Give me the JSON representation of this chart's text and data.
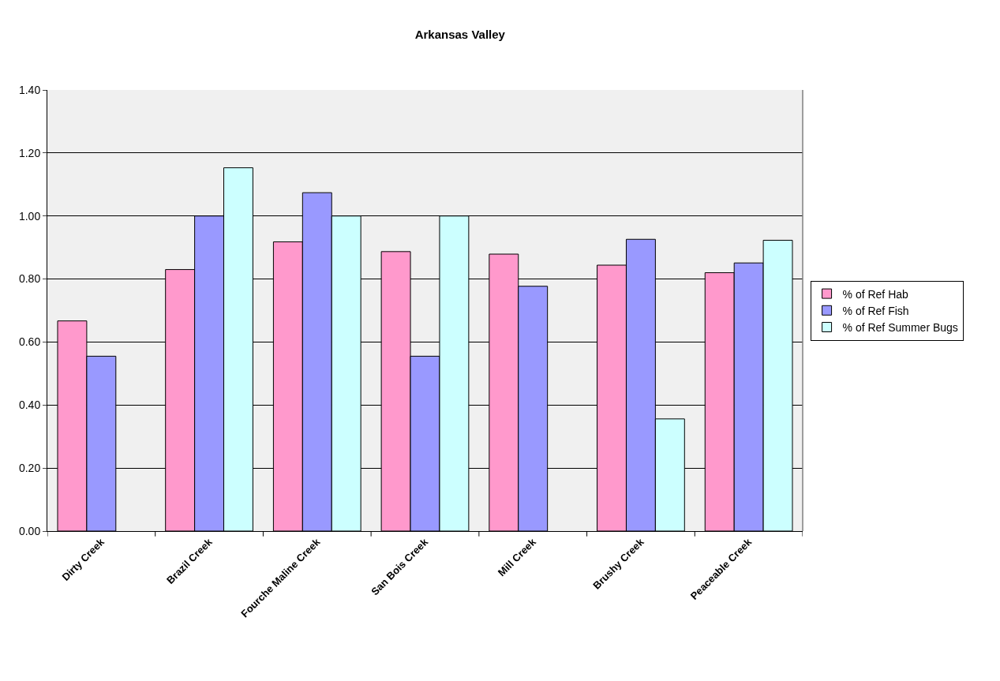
{
  "chart_data": {
    "type": "bar",
    "title": "Arkansas Valley",
    "categories": [
      "Dirty Creek",
      "Brazil Creek",
      "Fourche Maline Creek",
      "San Bois Creek",
      "Mill Creek",
      "Brushy Creek",
      "Peaceable Creek"
    ],
    "series": [
      {
        "name": "% of Ref Hab",
        "color": "#ff99cc",
        "values": [
          0.667,
          0.83,
          0.918,
          0.887,
          0.879,
          0.844,
          0.82
        ]
      },
      {
        "name": "% of Ref Fish",
        "color": "#9999ff",
        "values": [
          0.555,
          1.0,
          1.074,
          0.555,
          0.777,
          0.926,
          0.851
        ]
      },
      {
        "name": "% of Ref Summer Bugs",
        "color": "#ccffff",
        "values": [
          null,
          1.153,
          1.0,
          1.0,
          null,
          0.356,
          0.923
        ]
      }
    ],
    "ylim": [
      0,
      1.4
    ],
    "yticks": [
      {
        "value": 0,
        "label": "0.00"
      },
      {
        "value": 0.2,
        "label": "0.20"
      },
      {
        "value": 0.4,
        "label": "0.40"
      },
      {
        "value": 0.6,
        "label": "0.60"
      },
      {
        "value": 0.8,
        "label": "0.80"
      },
      {
        "value": 1.0,
        "label": "1.00"
      },
      {
        "value": 1.2,
        "label": "1.20"
      },
      {
        "value": 1.4,
        "label": "1.40"
      }
    ],
    "grid": "y",
    "legend": "right"
  }
}
